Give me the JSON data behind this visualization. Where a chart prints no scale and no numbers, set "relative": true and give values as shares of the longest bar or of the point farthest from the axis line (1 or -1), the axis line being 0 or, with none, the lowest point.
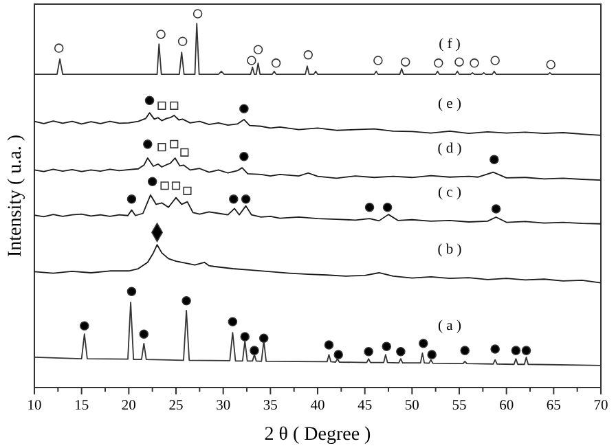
{
  "chart_data": {
    "type": "line",
    "relative": true,
    "xlabel": "2 θ ( Degree )",
    "ylabel": "Intensity ( u.a. )",
    "xlim": [
      10,
      70
    ],
    "xticks": [
      10,
      {
        "value": 12.5,
        "label": null
      },
      15,
      {
        "value": 17.5,
        "label": null
      },
      20,
      {
        "value": 22.5,
        "label": null
      },
      25,
      {
        "value": 27.5,
        "label": null
      },
      30,
      {
        "value": 32.5,
        "label": null
      },
      35,
      {
        "value": 37.5,
        "label": null
      },
      40,
      {
        "value": 42.5,
        "label": null
      },
      45,
      {
        "value": 47.5,
        "label": null
      },
      50,
      {
        "value": 52.5,
        "label": null
      },
      55,
      {
        "value": 57.5,
        "label": null
      },
      60,
      {
        "value": 62.5,
        "label": null
      },
      65,
      {
        "value": 67.5,
        "label": null
      },
      70
    ],
    "grid": false,
    "line_style": "solid",
    "series": [
      {
        "type": "line",
        "color": "#333333",
        "marker": "none",
        "x": [
          10,
          12.4,
          12.7,
          13.0,
          20,
          23.0,
          23.2,
          23.45,
          25.35,
          25.6,
          25.85,
          27.0,
          27.2,
          27.45,
          29.5,
          29.8,
          30.1,
          32.9,
          33.1,
          33.3,
          33.5,
          33.7,
          33.9,
          35.2,
          35.4,
          35.6,
          38.7,
          38.9,
          39.1,
          39.6,
          39.8,
          40,
          46.0,
          46.2,
          46.4,
          48.7,
          48.9,
          49.1,
          52.5,
          52.7,
          52.9,
          54.6,
          54.8,
          55,
          56.2,
          56.4,
          56.6,
          57.4,
          57.6,
          57.8,
          58.5,
          58.7,
          58.9,
          64.4,
          64.6,
          64.8,
          70
        ],
        "values": [
          0.838,
          0.838,
          0.879,
          0.838,
          0.838,
          0.838,
          0.919,
          0.838,
          0.838,
          0.897,
          0.838,
          0.838,
          0.974,
          0.838,
          0.838,
          0.846,
          0.838,
          0.838,
          0.857,
          0.838,
          0.838,
          0.868,
          0.838,
          0.838,
          0.846,
          0.838,
          0.838,
          0.86,
          0.838,
          0.838,
          0.846,
          0.838,
          0.838,
          0.846,
          0.838,
          0.838,
          0.853,
          0.838,
          0.838,
          0.846,
          0.838,
          0.838,
          0.846,
          0.838,
          0.838,
          0.842,
          0.838,
          0.838,
          0.842,
          0.838,
          0.838,
          0.846,
          0.838,
          0.838,
          0.842,
          0.838,
          0.838
        ]
      },
      {
        "type": "line",
        "color": "#1a1a1a",
        "marker": "none",
        "x": [
          10,
          11,
          12,
          13,
          14,
          15,
          16,
          17,
          18,
          19,
          20,
          21,
          21.8,
          22.2,
          22.7,
          23.1,
          23.5,
          24.0,
          24.4,
          24.8,
          25.3,
          25.7,
          26.5,
          27.5,
          28.5,
          29.5,
          30.5,
          31.5,
          32.2,
          32.8,
          34,
          35,
          36,
          38,
          40,
          42,
          44,
          46,
          48,
          50,
          52,
          54,
          56,
          58,
          60,
          62,
          64,
          66,
          68,
          70
        ],
        "values": [
          0.712,
          0.706,
          0.713,
          0.707,
          0.712,
          0.705,
          0.711,
          0.706,
          0.712,
          0.707,
          0.708,
          0.712,
          0.72,
          0.735,
          0.718,
          0.722,
          0.714,
          0.72,
          0.722,
          0.728,
          0.716,
          0.718,
          0.708,
          0.712,
          0.704,
          0.708,
          0.702,
          0.705,
          0.717,
          0.701,
          0.699,
          0.694,
          0.697,
          0.69,
          0.694,
          0.688,
          0.69,
          0.692,
          0.686,
          0.685,
          0.681,
          0.686,
          0.68,
          0.684,
          0.681,
          0.683,
          0.68,
          0.682,
          0.678,
          0.675
        ]
      },
      {
        "type": "line",
        "color": "#1a1a1a",
        "marker": "none",
        "x": [
          10,
          11,
          12,
          13,
          14,
          15,
          16,
          17,
          18,
          19,
          20,
          21,
          21.6,
          22.0,
          22.6,
          23.1,
          23.5,
          24.0,
          24.4,
          24.9,
          25.4,
          25.8,
          26.5,
          27.5,
          28.5,
          29.5,
          30.5,
          31.5,
          32.0,
          32.6,
          34,
          35,
          36,
          38,
          39,
          40,
          42,
          44,
          46,
          48,
          50,
          52,
          54,
          56,
          57,
          58.6,
          60,
          62,
          64,
          66,
          68,
          70
        ],
        "values": [
          0.582,
          0.578,
          0.584,
          0.579,
          0.583,
          0.578,
          0.582,
          0.579,
          0.584,
          0.58,
          0.583,
          0.585,
          0.595,
          0.614,
          0.592,
          0.598,
          0.59,
          0.596,
          0.6,
          0.614,
          0.593,
          0.595,
          0.582,
          0.586,
          0.576,
          0.582,
          0.574,
          0.58,
          0.588,
          0.572,
          0.57,
          0.566,
          0.57,
          0.566,
          0.574,
          0.565,
          0.56,
          0.566,
          0.562,
          0.565,
          0.562,
          0.567,
          0.563,
          0.565,
          0.563,
          0.576,
          0.561,
          0.562,
          0.558,
          0.56,
          0.557,
          0.555
        ]
      },
      {
        "type": "line",
        "color": "#1a1a1a",
        "marker": "none",
        "x": [
          10,
          11,
          12,
          13,
          14,
          15,
          16,
          17,
          18,
          19,
          19.9,
          20.3,
          20.7,
          21.5,
          22.3,
          22.9,
          23.5,
          24.2,
          25.0,
          25.6,
          26.2,
          26.8,
          27.5,
          28.5,
          29.5,
          30.5,
          31.2,
          31.7,
          32.4,
          33,
          34,
          35,
          36,
          38,
          40,
          42,
          44,
          45.5,
          46.5,
          47.5,
          48.5,
          50,
          52,
          54,
          56,
          58,
          58.9,
          60,
          62,
          64,
          66,
          68,
          70
        ],
        "values": [
          0.461,
          0.457,
          0.463,
          0.458,
          0.462,
          0.464,
          0.459,
          0.462,
          0.458,
          0.462,
          0.46,
          0.475,
          0.46,
          0.466,
          0.515,
          0.49,
          0.494,
          0.482,
          0.508,
          0.49,
          0.497,
          0.468,
          0.464,
          0.47,
          0.466,
          0.462,
          0.479,
          0.462,
          0.486,
          0.462,
          0.456,
          0.458,
          0.453,
          0.456,
          0.452,
          0.45,
          0.448,
          0.452,
          0.446,
          0.463,
          0.447,
          0.449,
          0.445,
          0.447,
          0.443,
          0.445,
          0.456,
          0.442,
          0.444,
          0.44,
          0.442,
          0.439,
          0.438
        ]
      },
      {
        "type": "line",
        "color": "#1a1a1a",
        "marker": "none",
        "x": [
          10,
          12,
          14,
          16,
          18,
          20,
          21,
          22,
          22.6,
          23.0,
          23.5,
          24.2,
          25,
          26,
          27,
          28,
          28.5,
          29,
          31,
          33,
          35,
          37,
          39,
          41,
          43,
          45,
          46.5,
          48,
          50,
          52,
          54,
          56,
          58,
          60,
          62,
          64,
          66,
          68,
          70
        ],
        "values": [
          0.31,
          0.306,
          0.311,
          0.307,
          0.312,
          0.312,
          0.318,
          0.335,
          0.36,
          0.382,
          0.36,
          0.345,
          0.338,
          0.333,
          0.328,
          0.335,
          0.326,
          0.324,
          0.318,
          0.314,
          0.31,
          0.306,
          0.303,
          0.301,
          0.298,
          0.3,
          0.307,
          0.298,
          0.293,
          0.296,
          0.292,
          0.294,
          0.289,
          0.292,
          0.288,
          0.29,
          0.285,
          0.287,
          0.28
        ]
      },
      {
        "type": "line",
        "color": "#333333",
        "marker": "none",
        "x": [
          10,
          15.0,
          15.3,
          15.6,
          19.9,
          20.2,
          20.5,
          21.35,
          21.6,
          21.85,
          25.8,
          26.1,
          26.4,
          30.7,
          31.0,
          31.3,
          32.05,
          32.3,
          32.55,
          33.1,
          33.3,
          33.5,
          34.05,
          34.3,
          34.55,
          41.0,
          41.2,
          41.4,
          41.9,
          42.1,
          42.3,
          45.2,
          45.4,
          45.6,
          47.0,
          47.2,
          47.4,
          48.6,
          48.8,
          49.0,
          50.9,
          51.1,
          51.3,
          51.8,
          52.0,
          52.2,
          55.4,
          55.6,
          55.8,
          58.6,
          58.8,
          59.0,
          60.8,
          61.0,
          61.2,
          61.9,
          62.1,
          62.3,
          70
        ],
        "values": [
          0.081,
          0.077,
          0.143,
          0.077,
          0.076,
          0.228,
          0.075,
          0.075,
          0.118,
          0.075,
          0.073,
          0.206,
          0.073,
          0.072,
          0.147,
          0.071,
          0.071,
          0.125,
          0.071,
          0.071,
          0.088,
          0.071,
          0.07,
          0.125,
          0.07,
          0.069,
          0.088,
          0.069,
          0.068,
          0.077,
          0.068,
          0.067,
          0.077,
          0.067,
          0.067,
          0.088,
          0.067,
          0.066,
          0.077,
          0.066,
          0.066,
          0.092,
          0.066,
          0.065,
          0.074,
          0.065,
          0.064,
          0.07,
          0.064,
          0.063,
          0.074,
          0.063,
          0.062,
          0.077,
          0.062,
          0.062,
          0.081,
          0.062,
          0.059
        ]
      },
      {
        "type": "scatter",
        "color": "#ffffff",
        "marker": "circle",
        "x": [
          12.6,
          23.4,
          25.7,
          27.3,
          33.0,
          33.7,
          35.6,
          39.0,
          46.4,
          49.3,
          52.8,
          55.0,
          56.6,
          58.8,
          64.7
        ],
        "values": [
          0.908,
          0.945,
          0.926,
          1.0,
          0.875,
          0.904,
          0.868,
          0.89,
          0.875,
          0.871,
          0.868,
          0.871,
          0.868,
          0.875,
          0.864
        ]
      },
      {
        "type": "scatter",
        "color": "#000000",
        "marker": "circle",
        "x": [
          22.2,
          32.2,
          22.0,
          32.2,
          58.7,
          20.3,
          22.5,
          31.1,
          32.4,
          45.5,
          47.4,
          58.9,
          15.3,
          20.3,
          21.6,
          26.1,
          31.0,
          32.3,
          33.3,
          34.3,
          41.2,
          42.2,
          45.4,
          47.3,
          48.8,
          51.2,
          52.1,
          55.6,
          58.8,
          61.0,
          62.1
        ],
        "values": [
          0.768,
          0.746,
          0.651,
          0.618,
          0.61,
          0.504,
          0.551,
          0.504,
          0.504,
          0.482,
          0.482,
          0.478,
          0.165,
          0.257,
          0.143,
          0.232,
          0.176,
          0.136,
          0.099,
          0.132,
          0.114,
          0.088,
          0.096,
          0.11,
          0.096,
          0.118,
          0.088,
          0.099,
          0.103,
          0.099,
          0.099
        ]
      },
      {
        "type": "scatter",
        "color": "#ffffff",
        "marker": "square",
        "x": [
          23.5,
          24.8,
          23.5,
          24.8,
          25.9,
          23.8,
          25.0,
          26.2
        ],
        "values": [
          0.754,
          0.754,
          0.643,
          0.651,
          0.629,
          0.54,
          0.54,
          0.526
        ]
      },
      {
        "type": "scatter",
        "color": "#000000",
        "marker": "diamond",
        "x": [
          23.0
        ],
        "values": [
          0.415
        ]
      }
    ],
    "annotations": [
      "( f )",
      "( e )",
      "( d )",
      "( c )",
      "( b )",
      "( a )"
    ]
  }
}
